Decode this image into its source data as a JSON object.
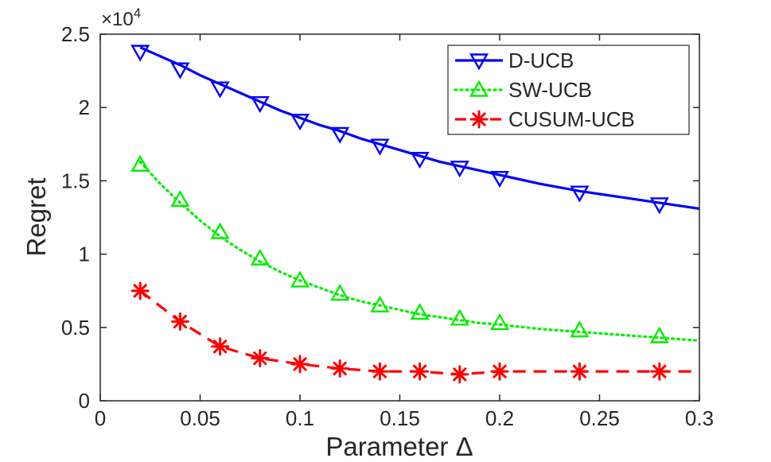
{
  "chart_data": {
    "type": "line",
    "title": "",
    "xlabel": "Parameter Δ",
    "ylabel": "Regret",
    "y_exponent": {
      "base": "×10",
      "power": "4"
    },
    "xlim": [
      0,
      0.3
    ],
    "ylim": [
      0,
      2.5
    ],
    "x_ticks": [
      {
        "value": 0,
        "label": "0"
      },
      {
        "value": 0.05,
        "label": "0.05"
      },
      {
        "value": 0.1,
        "label": "0.1"
      },
      {
        "value": 0.15,
        "label": "0.15"
      },
      {
        "value": 0.2,
        "label": "0.2"
      },
      {
        "value": 0.25,
        "label": "0.25"
      },
      {
        "value": 0.3,
        "label": "0.3"
      }
    ],
    "y_ticks": [
      {
        "value": 0,
        "label": "0"
      },
      {
        "value": 0.5,
        "label": "0.5"
      },
      {
        "value": 1,
        "label": "1"
      },
      {
        "value": 1.5,
        "label": "1.5"
      },
      {
        "value": 2,
        "label": "2"
      },
      {
        "value": 2.5,
        "label": "2.5"
      }
    ],
    "grid": false,
    "legend_position": "top-right",
    "series": [
      {
        "name": "D-UCB",
        "color": "#0000ff",
        "line_style": "solid",
        "marker": "triangle-down",
        "x": [
          0.02,
          0.04,
          0.06,
          0.08,
          0.1,
          0.12,
          0.14,
          0.16,
          0.18,
          0.2,
          0.24,
          0.28
        ],
        "values": [
          2.38,
          2.26,
          2.13,
          2.03,
          1.91,
          1.82,
          1.74,
          1.65,
          1.59,
          1.52,
          1.42,
          1.34
        ],
        "curve_x": [
          0.02,
          0.03,
          0.04,
          0.05,
          0.06,
          0.07,
          0.08,
          0.09,
          0.1,
          0.11,
          0.12,
          0.13,
          0.14,
          0.15,
          0.16,
          0.17,
          0.18,
          0.19,
          0.2,
          0.22,
          0.24,
          0.26,
          0.28,
          0.3
        ],
        "curve_y": [
          2.41,
          2.35,
          2.29,
          2.22,
          2.16,
          2.1,
          2.04,
          1.98,
          1.93,
          1.88,
          1.84,
          1.79,
          1.75,
          1.71,
          1.67,
          1.63,
          1.6,
          1.57,
          1.54,
          1.48,
          1.43,
          1.39,
          1.35,
          1.31
        ]
      },
      {
        "name": "SW-UCB",
        "color": "#00ee00",
        "line_style": "dotted",
        "marker": "triangle-up",
        "x": [
          0.02,
          0.04,
          0.06,
          0.08,
          0.1,
          0.12,
          0.14,
          0.16,
          0.18,
          0.2,
          0.24,
          0.28
        ],
        "values": [
          1.61,
          1.37,
          1.15,
          0.97,
          0.82,
          0.73,
          0.65,
          0.6,
          0.56,
          0.53,
          0.48,
          0.44
        ],
        "curve_x": [
          0.02,
          0.03,
          0.04,
          0.05,
          0.06,
          0.07,
          0.08,
          0.09,
          0.1,
          0.11,
          0.12,
          0.13,
          0.14,
          0.15,
          0.16,
          0.17,
          0.18,
          0.19,
          0.2,
          0.22,
          0.24,
          0.26,
          0.28,
          0.3
        ],
        "curve_y": [
          1.63,
          1.48,
          1.35,
          1.23,
          1.12,
          1.03,
          0.95,
          0.88,
          0.82,
          0.77,
          0.72,
          0.68,
          0.65,
          0.62,
          0.59,
          0.57,
          0.55,
          0.53,
          0.52,
          0.49,
          0.47,
          0.45,
          0.43,
          0.41
        ]
      },
      {
        "name": "CUSUM-UCB",
        "color": "#ff0000",
        "line_style": "dashed",
        "marker": "asterisk",
        "x": [
          0.02,
          0.04,
          0.06,
          0.08,
          0.1,
          0.12,
          0.14,
          0.16,
          0.18,
          0.2,
          0.24,
          0.28
        ],
        "values": [
          0.75,
          0.54,
          0.37,
          0.29,
          0.25,
          0.22,
          0.2,
          0.2,
          0.18,
          0.2,
          0.2,
          0.2
        ],
        "curve_x": [
          0.02,
          0.04,
          0.06,
          0.08,
          0.1,
          0.12,
          0.14,
          0.16,
          0.18,
          0.2,
          0.24,
          0.28,
          0.3
        ],
        "curve_y": [
          0.75,
          0.54,
          0.37,
          0.29,
          0.25,
          0.22,
          0.2,
          0.2,
          0.18,
          0.2,
          0.2,
          0.2,
          0.2
        ]
      }
    ]
  }
}
